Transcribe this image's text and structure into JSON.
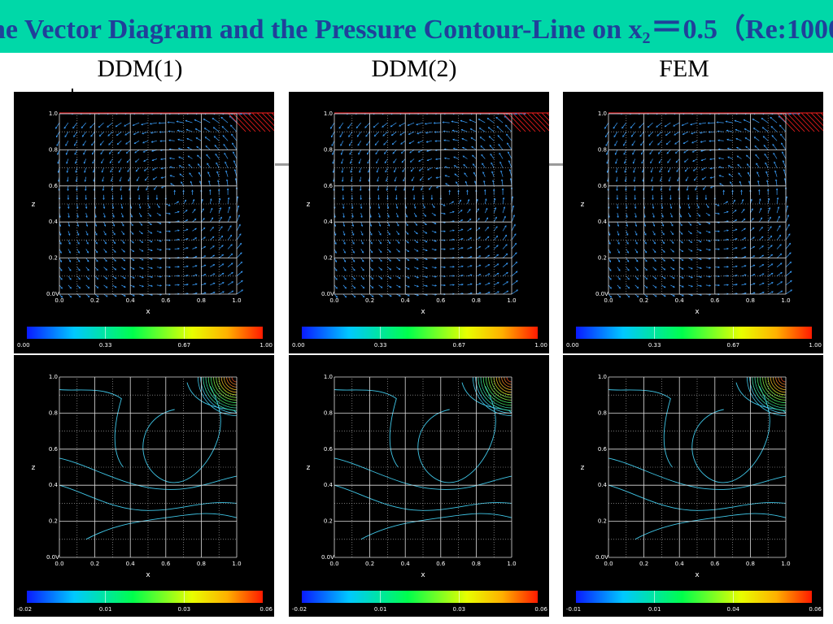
{
  "slide": {
    "title_pre": "he Vector Diagram and the Pressure Contour-Line on x",
    "title_sub": "2",
    "title_eq": "＝",
    "title_post": "0.5（Re:1000",
    "columns": [
      "DDM(1)",
      "DDM(2)",
      "FEM"
    ]
  },
  "plot_axes": {
    "x_ticks": [
      "0.0",
      "0.2",
      "0.4",
      "0.6",
      "0.8",
      "1.0"
    ],
    "y_ticks": [
      "0.0",
      "0.2",
      "0.4",
      "0.6",
      "0.8",
      "1.0"
    ],
    "xlabel": "x",
    "ylabel": "z",
    "corner_mark": "0.0V"
  },
  "colors": {
    "title_bar": "#00d8a8",
    "title_text": "#20409a",
    "vector": "#3aa0ff",
    "contour": "#3fc7e8",
    "lid": "#ff2020"
  },
  "panels": {
    "vector": [
      {
        "colorbar_labels": [
          "0.00",
          "0.33",
          "0.67",
          "1.00"
        ]
      },
      {
        "colorbar_labels": [
          "0.00",
          "0.33",
          "0.67",
          "1.00"
        ]
      },
      {
        "colorbar_labels": [
          "0.00",
          "0.33",
          "0.67",
          "1.00"
        ]
      }
    ],
    "pressure": [
      {
        "colorbar_labels": [
          "-0.02",
          "0.01",
          "0.03",
          "0.06"
        ]
      },
      {
        "colorbar_labels": [
          "-0.02",
          "0.01",
          "0.03",
          "0.06"
        ]
      },
      {
        "colorbar_labels": [
          "-0.01",
          "0.01",
          "0.04",
          "0.06"
        ]
      }
    ]
  }
}
